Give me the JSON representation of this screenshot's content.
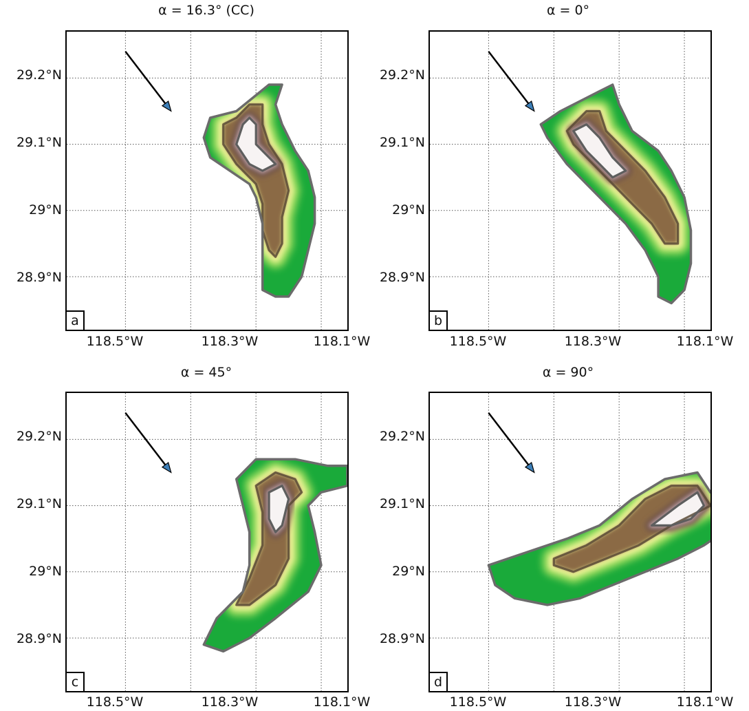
{
  "panels": [
    {
      "id": "a",
      "title": "α = 16.3° (CC)",
      "label": "a",
      "x_ticks": [
        "118.5°W",
        "118.3°W",
        "118.1°W"
      ],
      "y_ticks": [
        "29.2°N",
        "29.1°N",
        "29°N",
        "28.9°N"
      ],
      "outline": [
        [
          -118.33,
          29.15
        ],
        [
          -118.28,
          29.19
        ],
        [
          -118.26,
          29.19
        ],
        [
          -118.27,
          29.16
        ],
        [
          -118.26,
          29.13
        ],
        [
          -118.24,
          29.09
        ],
        [
          -118.22,
          29.06
        ],
        [
          -118.21,
          29.02
        ],
        [
          -118.21,
          28.98
        ],
        [
          -118.22,
          28.94
        ],
        [
          -118.23,
          28.9
        ],
        [
          -118.25,
          28.87
        ],
        [
          -118.27,
          28.87
        ],
        [
          -118.29,
          28.88
        ],
        [
          -118.29,
          28.92
        ],
        [
          -118.29,
          28.98
        ],
        [
          -118.3,
          29.02
        ],
        [
          -118.31,
          29.04
        ],
        [
          -118.34,
          29.06
        ],
        [
          -118.37,
          29.08
        ],
        [
          -118.38,
          29.11
        ],
        [
          -118.37,
          29.14
        ]
      ],
      "mid": [
        [
          -118.33,
          29.14
        ],
        [
          -118.31,
          29.16
        ],
        [
          -118.29,
          29.16
        ],
        [
          -118.29,
          29.13
        ],
        [
          -118.28,
          29.1
        ],
        [
          -118.26,
          29.07
        ],
        [
          -118.25,
          29.03
        ],
        [
          -118.26,
          28.99
        ],
        [
          -118.26,
          28.95
        ],
        [
          -118.27,
          28.93
        ],
        [
          -118.28,
          28.94
        ],
        [
          -118.29,
          28.97
        ],
        [
          -118.29,
          29.01
        ],
        [
          -118.3,
          29.04
        ],
        [
          -118.33,
          29.07
        ],
        [
          -118.35,
          29.1
        ],
        [
          -118.35,
          29.13
        ]
      ],
      "core": [
        [
          -118.32,
          29.13
        ],
        [
          -118.31,
          29.14
        ],
        [
          -118.3,
          29.13
        ],
        [
          -118.3,
          29.1
        ],
        [
          -118.28,
          29.08
        ],
        [
          -118.27,
          29.07
        ],
        [
          -118.29,
          29.06
        ],
        [
          -118.31,
          29.07
        ],
        [
          -118.33,
          29.1
        ]
      ]
    },
    {
      "id": "b",
      "title": "α = 0°",
      "label": "b",
      "x_ticks": [
        "118.5°W",
        "118.3°W",
        "118.1°W"
      ],
      "y_ticks": [
        "29.2°N",
        "29.1°N",
        "29°N",
        "28.9°N"
      ],
      "outline": [
        [
          -118.39,
          29.15
        ],
        [
          -118.33,
          29.18
        ],
        [
          -118.31,
          29.19
        ],
        [
          -118.3,
          29.16
        ],
        [
          -118.28,
          29.12
        ],
        [
          -118.24,
          29.09
        ],
        [
          -118.22,
          29.06
        ],
        [
          -118.2,
          29.02
        ],
        [
          -118.19,
          28.97
        ],
        [
          -118.19,
          28.92
        ],
        [
          -118.2,
          28.88
        ],
        [
          -118.22,
          28.86
        ],
        [
          -118.24,
          28.87
        ],
        [
          -118.24,
          28.9
        ],
        [
          -118.26,
          28.94
        ],
        [
          -118.29,
          28.98
        ],
        [
          -118.32,
          29.01
        ],
        [
          -118.35,
          29.04
        ],
        [
          -118.38,
          29.07
        ],
        [
          -118.41,
          29.11
        ],
        [
          -118.42,
          29.13
        ]
      ],
      "mid": [
        [
          -118.38,
          29.12
        ],
        [
          -118.35,
          29.15
        ],
        [
          -118.33,
          29.15
        ],
        [
          -118.32,
          29.12
        ],
        [
          -118.29,
          29.09
        ],
        [
          -118.26,
          29.06
        ],
        [
          -118.23,
          29.02
        ],
        [
          -118.21,
          28.98
        ],
        [
          -118.21,
          28.95
        ],
        [
          -118.23,
          28.95
        ],
        [
          -118.25,
          28.98
        ],
        [
          -118.28,
          29.01
        ],
        [
          -118.31,
          29.04
        ],
        [
          -118.34,
          29.07
        ],
        [
          -118.37,
          29.1
        ]
      ],
      "core": [
        [
          -118.37,
          29.12
        ],
        [
          -118.35,
          29.13
        ],
        [
          -118.33,
          29.11
        ],
        [
          -118.31,
          29.08
        ],
        [
          -118.29,
          29.06
        ],
        [
          -118.31,
          29.05
        ],
        [
          -118.33,
          29.07
        ],
        [
          -118.35,
          29.09
        ]
      ]
    },
    {
      "id": "c",
      "title": "α = 45°",
      "label": "c",
      "x_ticks": [
        "118.5°W",
        "118.3°W",
        "118.1°W"
      ],
      "y_ticks": [
        "29.2°N",
        "29.1°N",
        "29°N",
        "28.9°N"
      ],
      "outline": [
        [
          -118.33,
          29.14
        ],
        [
          -118.3,
          29.17
        ],
        [
          -118.24,
          29.17
        ],
        [
          -118.19,
          29.16
        ],
        [
          -118.16,
          29.16
        ],
        [
          -118.16,
          29.13
        ],
        [
          -118.2,
          29.12
        ],
        [
          -118.22,
          29.1
        ],
        [
          -118.21,
          29.06
        ],
        [
          -118.2,
          29.01
        ],
        [
          -118.22,
          28.97
        ],
        [
          -118.27,
          28.93
        ],
        [
          -118.31,
          28.9
        ],
        [
          -118.35,
          28.88
        ],
        [
          -118.38,
          28.89
        ],
        [
          -118.36,
          28.93
        ],
        [
          -118.32,
          28.97
        ],
        [
          -118.31,
          29.01
        ],
        [
          -118.31,
          29.06
        ],
        [
          -118.32,
          29.1
        ]
      ],
      "mid": [
        [
          -118.3,
          29.13
        ],
        [
          -118.27,
          29.15
        ],
        [
          -118.24,
          29.14
        ],
        [
          -118.23,
          29.12
        ],
        [
          -118.25,
          29.1
        ],
        [
          -118.25,
          29.06
        ],
        [
          -118.25,
          29.02
        ],
        [
          -118.27,
          28.98
        ],
        [
          -118.31,
          28.95
        ],
        [
          -118.33,
          28.95
        ],
        [
          -118.31,
          28.99
        ],
        [
          -118.29,
          29.04
        ],
        [
          -118.29,
          29.09
        ]
      ],
      "core": [
        [
          -118.28,
          29.12
        ],
        [
          -118.26,
          29.13
        ],
        [
          -118.25,
          29.11
        ],
        [
          -118.26,
          29.07
        ],
        [
          -118.27,
          29.06
        ],
        [
          -118.28,
          29.08
        ],
        [
          -118.28,
          29.11
        ]
      ]
    },
    {
      "id": "d",
      "title": "α = 90°",
      "label": "d",
      "x_ticks": [
        "118.5°W",
        "118.3°W",
        "118.1°W"
      ],
      "y_ticks": [
        "29.2°N",
        "29.1°N",
        "29°N",
        "28.9°N"
      ],
      "outline": [
        [
          -118.5,
          29.01
        ],
        [
          -118.44,
          29.03
        ],
        [
          -118.38,
          29.05
        ],
        [
          -118.33,
          29.07
        ],
        [
          -118.28,
          29.11
        ],
        [
          -118.23,
          29.14
        ],
        [
          -118.18,
          29.15
        ],
        [
          -118.16,
          29.12
        ],
        [
          -118.13,
          29.1
        ],
        [
          -118.11,
          29.07
        ],
        [
          -118.14,
          29.06
        ],
        [
          -118.17,
          29.04
        ],
        [
          -118.21,
          29.02
        ],
        [
          -118.26,
          29.0
        ],
        [
          -118.31,
          28.98
        ],
        [
          -118.36,
          28.96
        ],
        [
          -118.41,
          28.95
        ],
        [
          -118.46,
          28.96
        ],
        [
          -118.49,
          28.98
        ]
      ],
      "mid": [
        [
          -118.4,
          29.02
        ],
        [
          -118.35,
          29.04
        ],
        [
          -118.3,
          29.07
        ],
        [
          -118.26,
          29.11
        ],
        [
          -118.22,
          29.13
        ],
        [
          -118.18,
          29.13
        ],
        [
          -118.16,
          29.1
        ],
        [
          -118.18,
          29.09
        ],
        [
          -118.22,
          29.07
        ],
        [
          -118.27,
          29.04
        ],
        [
          -118.32,
          29.02
        ],
        [
          -118.37,
          29.0
        ],
        [
          -118.4,
          29.01
        ]
      ],
      "core": [
        [
          -118.25,
          29.07
        ],
        [
          -118.21,
          29.1
        ],
        [
          -118.18,
          29.12
        ],
        [
          -118.17,
          29.1
        ],
        [
          -118.19,
          29.08
        ],
        [
          -118.22,
          29.07
        ]
      ]
    }
  ],
  "grid": {
    "lon_lines": [
      -118.6,
      -118.5,
      -118.4,
      -118.3,
      -118.2,
      -118.1
    ],
    "lat_lines": [
      29.2,
      29.1,
      29.0,
      28.9
    ],
    "style": "dotted"
  },
  "extent": {
    "lon_min": -118.59,
    "lon_max": -118.16,
    "lat_min": 28.82,
    "lat_max": 29.27
  },
  "wind_arrow": {
    "from": [
      -118.5,
      29.24
    ],
    "to": [
      -118.43,
      29.15
    ]
  },
  "colors": {
    "frame": "#000000",
    "grid": "#555555",
    "outline": "#6b6b6b",
    "arrow": "#000000",
    "arrowhead": "#3d7fb8",
    "ramp": [
      "#1aaa3a",
      "#8fd85a",
      "#f2f59a",
      "#8b6a45",
      "#6e5148",
      "#b59a9c",
      "#f7f3f3"
    ]
  }
}
